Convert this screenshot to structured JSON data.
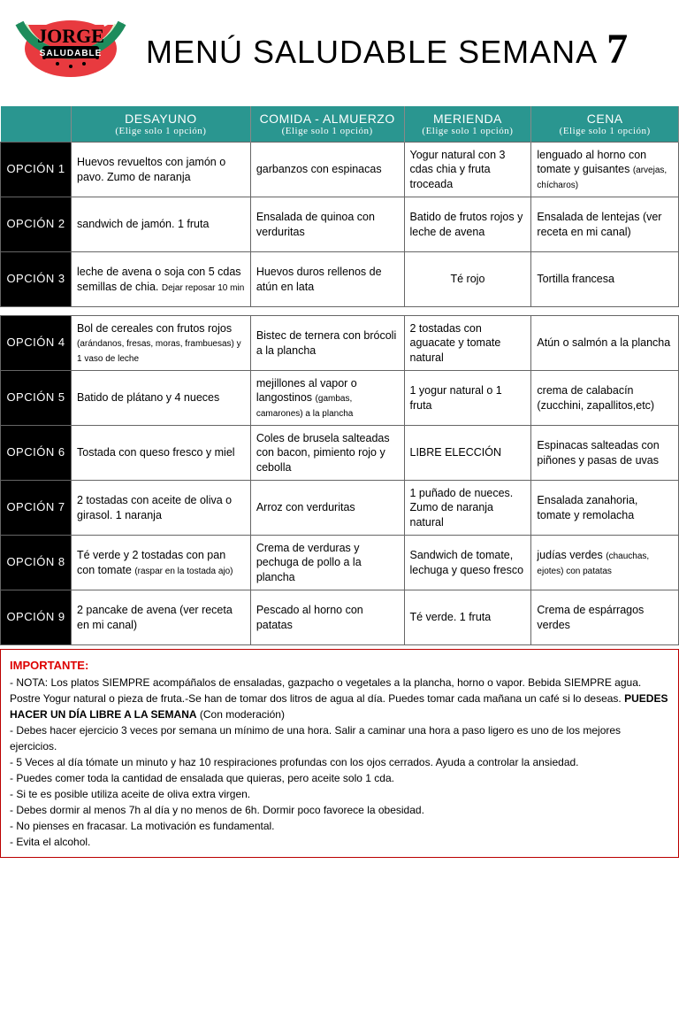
{
  "title_main": "MENÚ SALUDABLE SEMANA",
  "week": "7",
  "logo_text1": "JORGE",
  "logo_text2": "SALUDABLE",
  "logo_colors": {
    "rind": "#1d8c5c",
    "flesh": "#e83a3f",
    "seed": "#000"
  },
  "header_bg": "#2a9690",
  "opcion_bg": "#000000",
  "columns": [
    {
      "title": "DESAYUNO",
      "sub": "(Elige solo 1 opción)"
    },
    {
      "title": "COMIDA - ALMUERZO",
      "sub": "(Elige solo 1 opción)"
    },
    {
      "title": "MERIENDA",
      "sub": "(Elige solo 1 opción)"
    },
    {
      "title": "CENA",
      "sub": "(Elige solo 1 opción)"
    }
  ],
  "group1": [
    {
      "label": "OPCIÓN 1",
      "desayuno": "Huevos revueltos con jamón o pavo. Zumo de naranja",
      "comida": "garbanzos con espinacas",
      "merienda": "Yogur natural con 3 cdas chia y fruta troceada",
      "cena": "lenguado al horno con tomate y guisantes",
      "cena_paren": "(arvejas, chícharos)"
    },
    {
      "label": "OPCIÓN 2",
      "desayuno": "sandwich de jamón. 1 fruta",
      "comida": "Ensalada de quinoa con verduritas",
      "merienda": "Batido de frutos rojos y leche de avena",
      "cena": "Ensalada de lentejas (ver receta en mi canal)"
    },
    {
      "label": "OPCIÓN 3",
      "desayuno": "leche de avena o soja con 5 cdas semillas de chia.",
      "desayuno_paren": "Dejar reposar 10 min",
      "comida": "Huevos duros rellenos de atún en lata",
      "merienda": "Té rojo",
      "cena": "Tortilla francesa"
    }
  ],
  "group2": [
    {
      "label": "OPCIÓN 4",
      "desayuno": "Bol de cereales con frutos rojos",
      "desayuno_paren": "(arándanos, fresas, moras, frambuesas) y 1 vaso de leche",
      "comida": "Bistec de ternera con brócoli a la plancha",
      "merienda": "2 tostadas con aguacate y tomate natural",
      "cena": "Atún o salmón a la plancha"
    },
    {
      "label": "OPCIÓN 5",
      "desayuno": "Batido de plátano y 4 nueces",
      "comida": "mejillones al vapor o langostinos",
      "comida_paren": "(gambas, camarones) a la plancha",
      "merienda": "1 yogur natural o 1 fruta",
      "cena": "crema de calabacín (zucchini, zapallitos,etc)"
    },
    {
      "label": "OPCIÓN 6",
      "desayuno": "Tostada con queso fresco y miel",
      "comida": "Coles de brusela salteadas con bacon, pimiento rojo y cebolla",
      "merienda": "LIBRE ELECCIÓN",
      "cena": "Espinacas salteadas con piñones y pasas de uvas"
    },
    {
      "label": "OPCIÓN 7",
      "desayuno": "2 tostadas con aceite de oliva o girasol. 1 naranja",
      "comida": "Arroz con verduritas",
      "merienda": "1 puñado de nueces. Zumo de naranja natural",
      "cena": "Ensalada zanahoria, tomate y remolacha"
    },
    {
      "label": "OPCIÓN 8",
      "desayuno": "Té verde y 2 tostadas con pan con tomate",
      "desayuno_paren": "(raspar en la tostada ajo)",
      "comida": "Crema de verduras y pechuga de pollo a la plancha",
      "merienda": "Sandwich de tomate, lechuga y queso fresco",
      "cena": "judías verdes",
      "cena_paren": "(chauchas, ejotes) con patatas"
    },
    {
      "label": "OPCIÓN 9",
      "desayuno": "2 pancake de avena (ver receta en mi canal)",
      "comida": "Pescado al horno con patatas",
      "merienda": "Té verde. 1 fruta",
      "cena": "Crema de espárragos verdes"
    }
  ],
  "notes": {
    "heading": "IMPORTANTE:",
    "line1a": "- NOTA: Los platos SIEMPRE acompáñalos de ensaladas, gazpacho o vegetales a la plancha, horno o vapor. Bebida SIEMPRE agua. Postre Yogur natural o pieza de fruta.-Se han de tomar dos litros de agua al día. Puedes tomar cada mañana un café si lo deseas. ",
    "line1b": "PUEDES HACER UN DÍA LIBRE A LA SEMANA",
    "line1c": " (Con moderación)",
    "items": [
      "- Debes hacer ejercicio 3 veces por semana un mínimo de una hora. Salir a caminar una hora a paso ligero es uno de los mejores ejercicios.",
      "- 5 Veces al día tómate un minuto y haz 10 respiraciones profundas con los ojos cerrados. Ayuda a controlar la ansiedad.",
      "- Puedes comer toda la cantidad de ensalada que quieras, pero aceite solo 1 cda.",
      "- Si te es posible utiliza aceite de oliva extra virgen.",
      "- Debes dormir al menos 7h al día y no menos de 6h. Dormir poco favorece la obesidad.",
      "- No pienses en fracasar. La motivación es fundamental.",
      "- Evita el alcohol."
    ]
  }
}
